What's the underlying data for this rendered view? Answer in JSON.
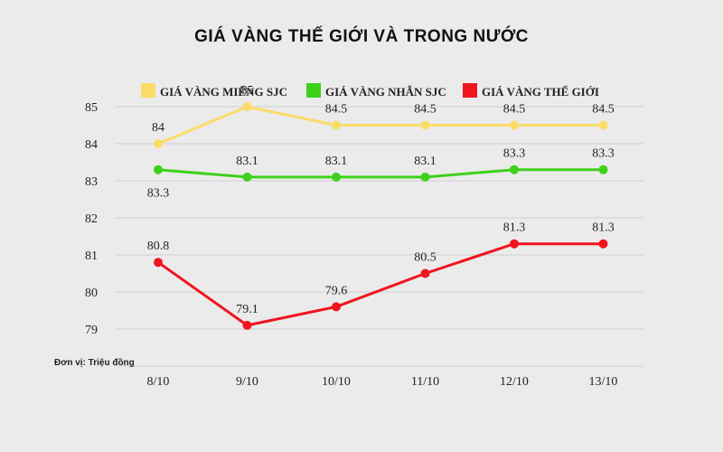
{
  "chart_data": {
    "type": "line",
    "title": "GIÁ VÀNG THẾ GIỚI VÀ TRONG NƯỚC",
    "unit_note": "Đơn vị: Triệu đồng",
    "categories": [
      "8/10",
      "9/10",
      "10/10",
      "11/10",
      "12/10",
      "13/10"
    ],
    "ylim": [
      79,
      85
    ],
    "yticks": [
      "79",
      "80",
      "81",
      "82",
      "83",
      "84",
      "85"
    ],
    "grid": true,
    "legend_position": "top",
    "series": [
      {
        "name": "GIÁ VÀNG MIẾNG SJC",
        "color": "#fbdc68",
        "values": [
          84,
          85,
          84.5,
          84.5,
          84.5,
          84.5
        ],
        "labels": [
          "84",
          "85",
          "84.5",
          "84.5",
          "84.5",
          "84.5"
        ]
      },
      {
        "name": "GIÁ VÀNG NHẪN SJC",
        "color": "#3ed11a",
        "values": [
          83.3,
          83.1,
          83.1,
          83.1,
          83.3,
          83.3
        ],
        "labels": [
          "83.3",
          "83.1",
          "83.1",
          "83.1",
          "83.3",
          "83.3"
        ]
      },
      {
        "name": "GIÁ VÀNG THẾ GIỚI",
        "color": "#f0141e",
        "values": [
          80.8,
          79.1,
          79.6,
          80.5,
          81.3,
          81.3
        ],
        "labels": [
          "80.8",
          "79.1",
          "79.6",
          "80.5",
          "81.3",
          "81.3"
        ]
      }
    ]
  }
}
